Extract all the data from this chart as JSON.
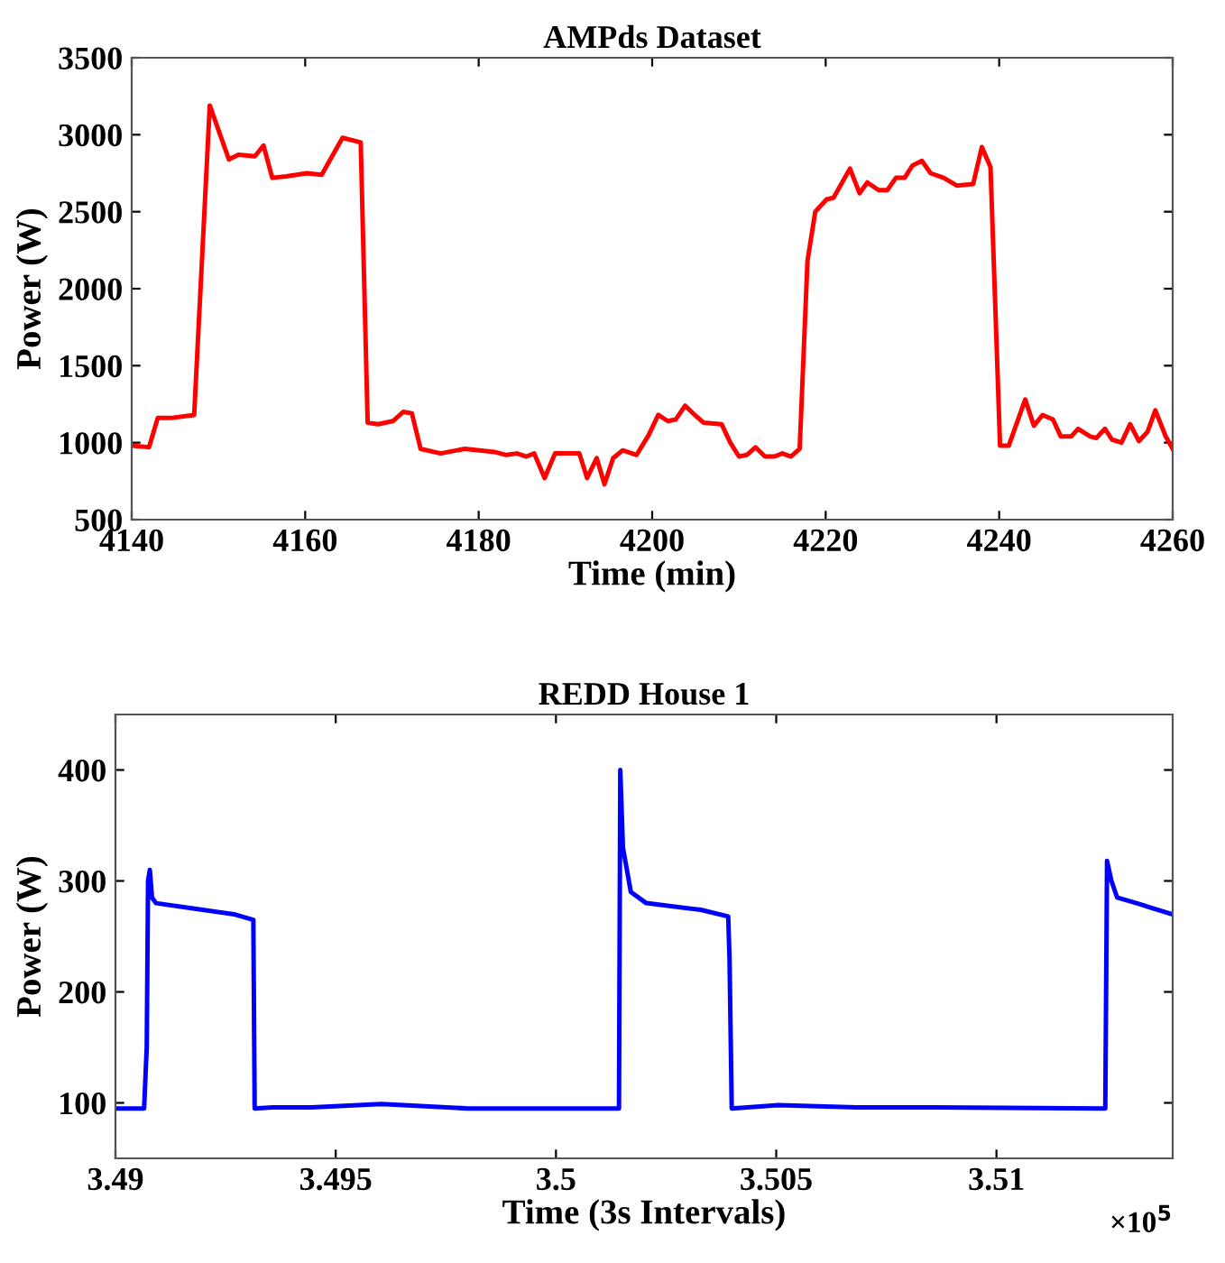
{
  "chart_data": [
    {
      "type": "line",
      "title": "AMPds Dataset",
      "xlabel": "Time (min)",
      "ylabel": "Power (W)",
      "xlim": [
        4140,
        4260
      ],
      "xticks": [
        4140,
        4160,
        4180,
        4200,
        4220,
        4240,
        4260
      ],
      "ylim": [
        500,
        3500
      ],
      "yticks": [
        500,
        1000,
        1500,
        2000,
        2500,
        3000,
        3500
      ],
      "grid": false,
      "legend": false,
      "series": [
        {
          "color": "#ff0000",
          "line_style": "solid",
          "marker": "none",
          "x": [
            4140,
            4142,
            4143,
            4144.5,
            4147.2,
            4149,
            4151.2,
            4152.3,
            4154.2,
            4155.2,
            4156.2,
            4157.8,
            4160.2,
            4161.9,
            4164.3,
            4166.4,
            4167.2,
            4168.4,
            4170.1,
            4171.3,
            4172.3,
            4173.3,
            4175.6,
            4178.4,
            4181.8,
            4183.2,
            4184.4,
            4185.5,
            4186.4,
            4187.6,
            4188.8,
            4191.6,
            4192.5,
            4193.6,
            4194.5,
            4195.5,
            4196.6,
            4198.2,
            4199.6,
            4200.7,
            4201.8,
            4202.7,
            4203.8,
            4204.9,
            4205.9,
            4208,
            4209,
            4210,
            4210.9,
            4211.9,
            4213,
            4214.1,
            4215,
            4216,
            4217,
            4217.9,
            4218.8,
            4220.1,
            4220.9,
            4222.8,
            4223.9,
            4224.8,
            4226.1,
            4227.1,
            4228.1,
            4229.1,
            4230,
            4231.1,
            4232.1,
            4233.6,
            4235.1,
            4237,
            4238,
            4239,
            4240.1,
            4241.1,
            4243,
            4244,
            4245,
            4246.2,
            4247.1,
            4248.3,
            4249.1,
            4250.5,
            4251.2,
            4252.2,
            4253,
            4254.1,
            4255.1,
            4256.1,
            4257.1,
            4258,
            4259.2,
            4260
          ],
          "values": [
            980,
            970,
            1160,
            1160,
            1180,
            3190,
            2840,
            2870,
            2860,
            2930,
            2720,
            2730,
            2750,
            2740,
            2980,
            2950,
            1130,
            1120,
            1140,
            1200,
            1190,
            960,
            930,
            960,
            940,
            920,
            930,
            910,
            930,
            770,
            930,
            930,
            770,
            900,
            730,
            900,
            950,
            920,
            1050,
            1180,
            1140,
            1150,
            1240,
            1180,
            1130,
            1120,
            1000,
            910,
            920,
            970,
            910,
            910,
            930,
            910,
            960,
            2180,
            2500,
            2580,
            2590,
            2780,
            2620,
            2690,
            2640,
            2640,
            2720,
            2720,
            2800,
            2830,
            2750,
            2720,
            2670,
            2680,
            2920,
            2790,
            980,
            980,
            1280,
            1110,
            1180,
            1150,
            1040,
            1040,
            1090,
            1040,
            1030,
            1090,
            1020,
            1000,
            1120,
            1010,
            1070,
            1210,
            1040,
            960
          ]
        }
      ]
    },
    {
      "type": "line",
      "title": "REDD House 1",
      "xlabel": "Time (3s Intervals)",
      "ylabel": "Power (W)",
      "xlim": [
        3.49,
        3.514
      ],
      "xticks": [
        3.49,
        3.495,
        3.5,
        3.505,
        3.51
      ],
      "ylim": [
        50,
        450
      ],
      "yticks": [
        100,
        200,
        300,
        400
      ],
      "grid": false,
      "legend": false,
      "annotations": [
        "×10$^{5}$"
      ],
      "series": [
        {
          "color": "#0000ff",
          "line_style": "solid",
          "marker": "none",
          "x": [
            3.49,
            3.49065,
            3.49071,
            3.49074,
            3.49078,
            3.49083,
            3.49092,
            3.4918,
            3.49269,
            3.49313,
            3.49316,
            3.49357,
            3.49445,
            3.49604,
            3.49799,
            3.49975,
            3.50143,
            3.50146,
            3.50152,
            3.5017,
            3.50205,
            3.50329,
            3.50391,
            3.50394,
            3.50399,
            3.50505,
            3.50682,
            3.50859,
            3.51247,
            3.51251,
            3.51261,
            3.51274,
            3.51318,
            3.51398
          ],
          "values": [
            95,
            95,
            150,
            300,
            310,
            285,
            280,
            275,
            270,
            265,
            95,
            96,
            96,
            99,
            95,
            95,
            95,
            400,
            330,
            290,
            280,
            274,
            268,
            230,
            95,
            98,
            96,
            96,
            95,
            318,
            300,
            285,
            280,
            270
          ]
        }
      ]
    }
  ]
}
